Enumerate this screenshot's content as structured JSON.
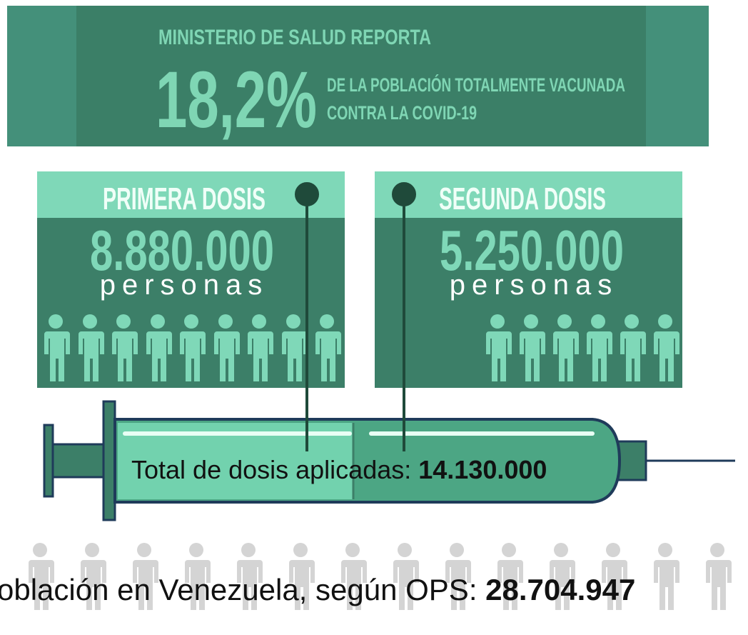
{
  "header": {
    "kicker": "MINISTERIO DE SALUD REPORTA",
    "percent": "18,2%",
    "line1": "DE LA POBLACIÓN TOTALMENTE VACUNADA",
    "line2": "CONTRA LA COVID-19"
  },
  "cards": [
    {
      "title": "PRIMERA DOSIS",
      "number": "8.880.000",
      "unit": "personas"
    },
    {
      "title": "SEGUNDA DOSIS",
      "number": "5.250.000",
      "unit": "personas"
    }
  ],
  "syringe": {
    "label": "Total de dosis aplicadas:",
    "total": "14.130.000"
  },
  "footer": {
    "label": "oblación en Venezuela, según OPS:",
    "total": "28.704.947"
  }
}
